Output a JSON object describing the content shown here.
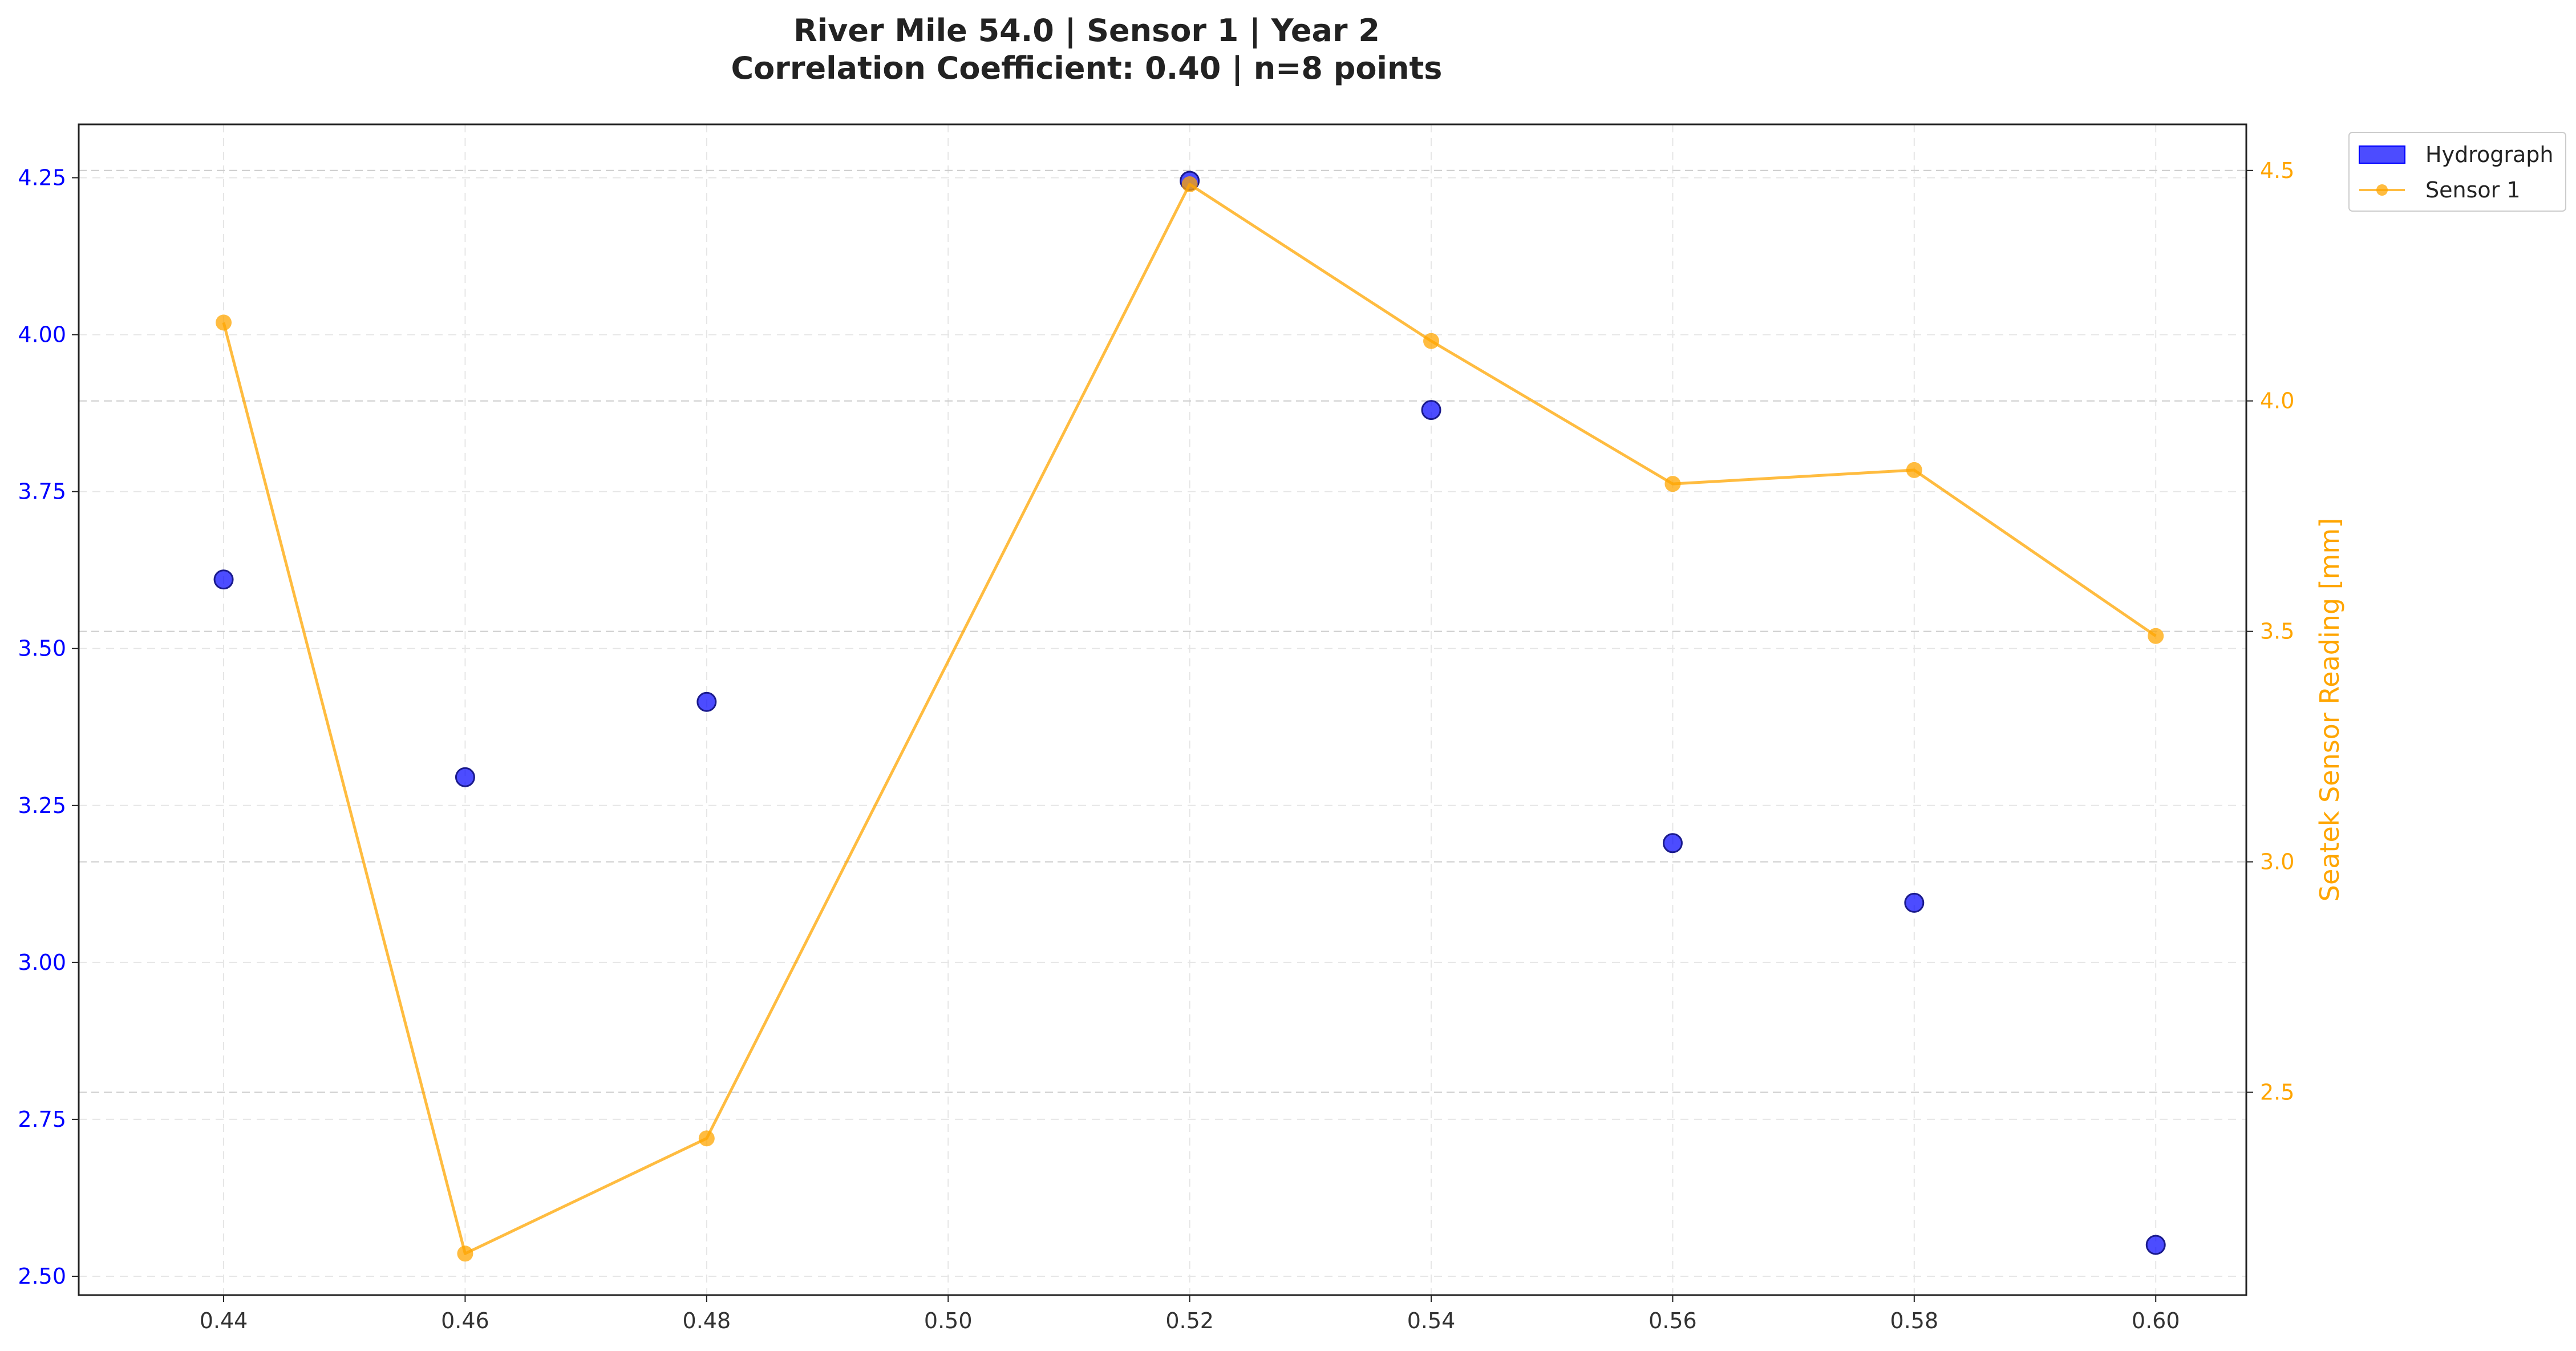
{
  "chart_data": {
    "type": "scatter",
    "title_line1": "River Mile 54.0 | Sensor 1 | Year 2",
    "title_line2": "Correlation Coefficient: 0.40 | n=8 points",
    "xlabel": "",
    "ylabel_left": "",
    "ylabel_right": "Seatek Sensor Reading [mm]",
    "x_ticks": [
      "0.44",
      "0.46",
      "0.48",
      "0.50",
      "0.52",
      "0.54",
      "0.56",
      "0.58",
      "0.60"
    ],
    "y_left_ticks": [
      "2.50",
      "2.75",
      "3.00",
      "3.25",
      "3.50",
      "3.75",
      "4.00",
      "4.25"
    ],
    "y_right_ticks": [
      "2.5",
      "3.0",
      "3.5",
      "4.0",
      "4.5"
    ],
    "xlim": [
      0.428,
      0.6075
    ],
    "ylim_left": [
      2.47,
      4.335
    ],
    "ylim_right": [
      2.06,
      4.6
    ],
    "grid": true,
    "legend_position": "outside-top-right",
    "series": [
      {
        "name": "Hydrograph",
        "kind": "scatter",
        "axis": "left",
        "color": "#0000ff",
        "x": [
          0.44,
          0.46,
          0.48,
          0.52,
          0.54,
          0.56,
          0.58,
          0.6
        ],
        "y": [
          3.61,
          3.295,
          3.415,
          4.245,
          3.88,
          3.19,
          3.095,
          2.55
        ]
      },
      {
        "name": "Sensor 1",
        "kind": "line",
        "axis": "right",
        "color": "#ffa500",
        "x": [
          0.44,
          0.46,
          0.48,
          0.52,
          0.54,
          0.56,
          0.58,
          0.6
        ],
        "y": [
          4.17,
          2.15,
          2.4,
          4.47,
          4.13,
          3.82,
          3.85,
          3.49
        ]
      }
    ]
  }
}
